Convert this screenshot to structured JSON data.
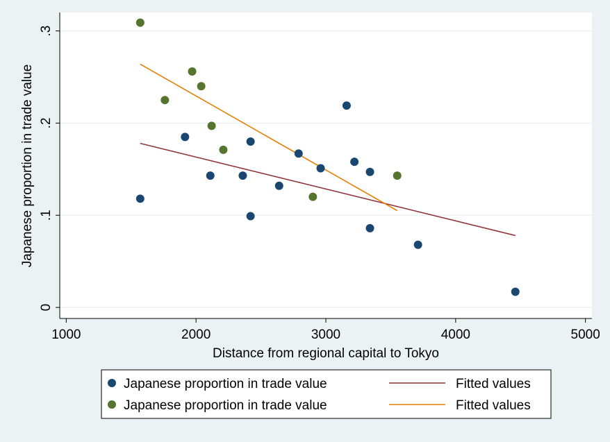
{
  "chart_data": {
    "type": "scatter",
    "xlabel": "Distance from regional capital to Tokyo",
    "ylabel": "Japanese proportion in trade value",
    "xlim": [
      950,
      5050
    ],
    "ylim": [
      -0.012,
      0.32
    ],
    "x_ticks": [
      1000,
      2000,
      3000,
      4000,
      5000
    ],
    "x_tick_labels": [
      "1000",
      "2000",
      "3000",
      "4000",
      "5000"
    ],
    "y_ticks": [
      0,
      0.1,
      0.2,
      0.3
    ],
    "y_tick_labels": [
      "0",
      ".1",
      ".2",
      ".3"
    ],
    "grid": "horizontal",
    "legend_position": "bottom",
    "colors": {
      "background": "#eaf2f3",
      "plot_background": "#ffffff",
      "series1_markers": "#1a476f",
      "series2_markers": "#55752f",
      "series1_fit": "#90353b",
      "series2_fit": "#e37e00",
      "grid": "#eaf2f3"
    },
    "series": [
      {
        "name": "Japanese proportion in trade value",
        "kind": "scatter",
        "color": "#1a476f",
        "points": [
          [
            1570,
            0.118
          ],
          [
            1915,
            0.185
          ],
          [
            2110,
            0.143
          ],
          [
            2360,
            0.143
          ],
          [
            2420,
            0.18
          ],
          [
            2420,
            0.099
          ],
          [
            2640,
            0.132
          ],
          [
            2790,
            0.167
          ],
          [
            2960,
            0.151
          ],
          [
            3160,
            0.219
          ],
          [
            3220,
            0.158
          ],
          [
            3340,
            0.147
          ],
          [
            3340,
            0.086
          ],
          [
            3710,
            0.068
          ],
          [
            4460,
            0.017
          ]
        ]
      },
      {
        "name": "Japanese proportion in trade value",
        "kind": "scatter",
        "color": "#55752f",
        "points": [
          [
            1570,
            0.309
          ],
          [
            1760,
            0.225
          ],
          [
            1970,
            0.256
          ],
          [
            2040,
            0.24
          ],
          [
            2120,
            0.197
          ],
          [
            2210,
            0.171
          ],
          [
            2900,
            0.12
          ],
          [
            3550,
            0.143
          ]
        ]
      },
      {
        "name": "Fitted values",
        "kind": "line",
        "color": "#90353b",
        "points": [
          [
            1570,
            0.178
          ],
          [
            4460,
            0.078
          ]
        ]
      },
      {
        "name": "Fitted values",
        "kind": "line",
        "color": "#e37e00",
        "points": [
          [
            1570,
            0.264
          ],
          [
            3550,
            0.105
          ]
        ]
      }
    ]
  }
}
